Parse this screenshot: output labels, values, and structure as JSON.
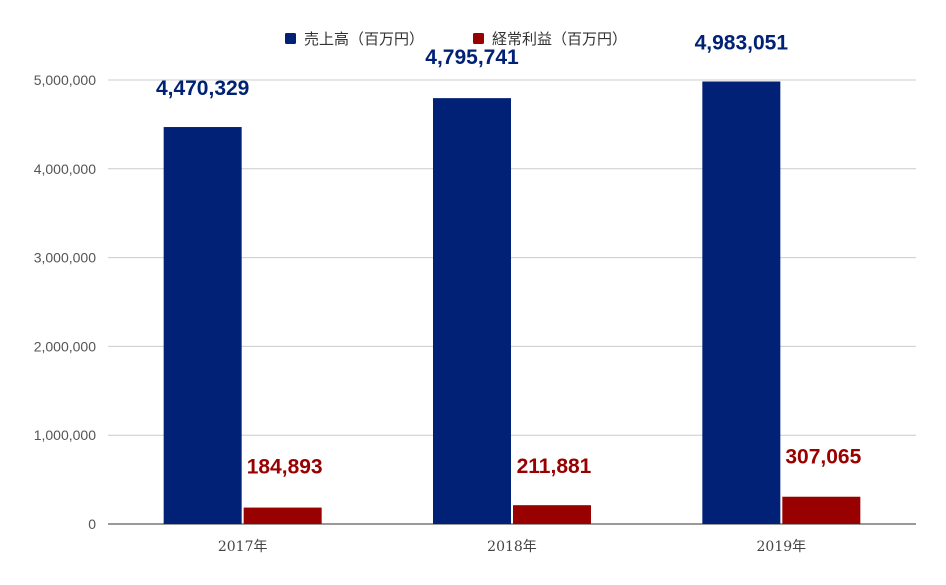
{
  "chart_data": {
    "type": "bar",
    "categories": [
      "2017年",
      "2018年",
      "2019年"
    ],
    "series": [
      {
        "name": "売上高（百万円）",
        "values": [
          4470329,
          4795741,
          4983051
        ],
        "labels": [
          "4,470,329",
          "4,795,741",
          "4,983,051"
        ],
        "color": "#002175"
      },
      {
        "name": "経常利益（百万円）",
        "values": [
          184893,
          211881,
          307065
        ],
        "labels": [
          "184,893",
          "211,881",
          "307,065"
        ],
        "color": "#990000"
      }
    ],
    "y_ticks": [
      {
        "value": 0,
        "label": "0"
      },
      {
        "value": 1000000,
        "label": "1,000,000"
      },
      {
        "value": 2000000,
        "label": "2,000,000"
      },
      {
        "value": 3000000,
        "label": "3,000,000"
      },
      {
        "value": 4000000,
        "label": "4,000,000"
      },
      {
        "value": 5000000,
        "label": "5,000,000"
      }
    ],
    "ylim": [
      0,
      5000000
    ],
    "grid": true,
    "legend_position": "top-center",
    "title": "",
    "xlabel": "",
    "ylabel": ""
  }
}
